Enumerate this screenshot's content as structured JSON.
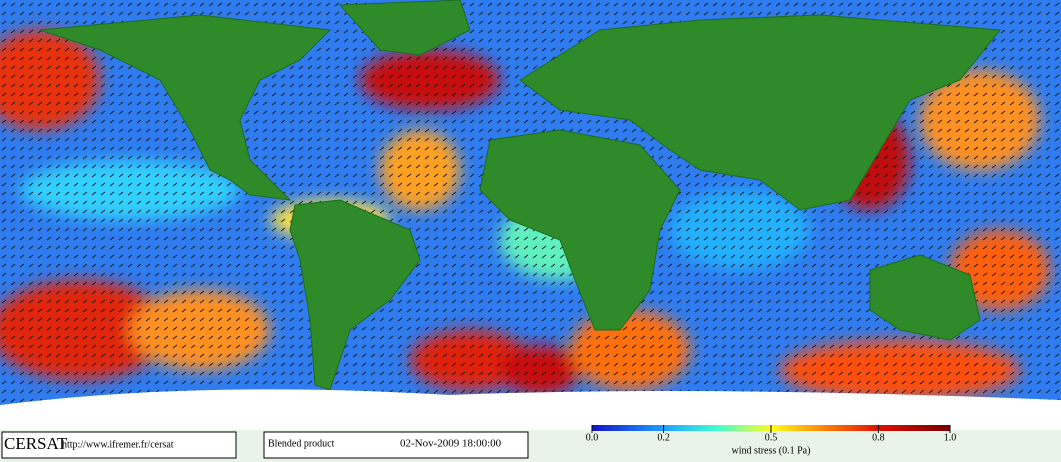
{
  "footer": {
    "logo": "CERSAT",
    "url": "http://www.ifremer.fr/cersat",
    "product": "Blended product",
    "datetime": "02-Nov-2009 18:00:00"
  },
  "colorbar": {
    "title": "wind stress (0.1 Pa)",
    "range": [
      0,
      1
    ],
    "ticks": [
      {
        "value": 0,
        "label": "0.0"
      },
      {
        "value": 0.2,
        "label": "0.2"
      },
      {
        "value": 0.5,
        "label": "0.5"
      },
      {
        "value": 0.8,
        "label": "0.8"
      },
      {
        "value": 1,
        "label": "1.0"
      }
    ]
  }
}
